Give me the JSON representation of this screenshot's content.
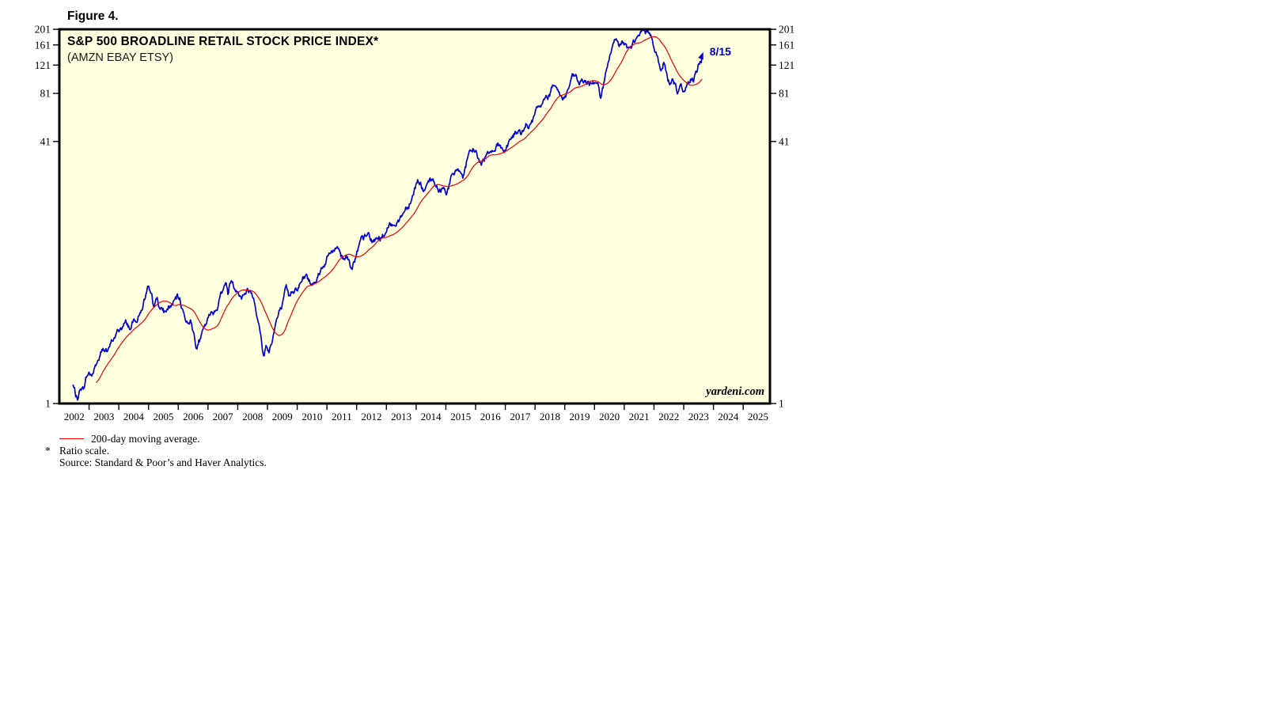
{
  "figure_label": "Figure 4.",
  "watermark": "yardeni.com",
  "footnotes": {
    "legend_ma": "200-day moving average.",
    "asterisk": "*",
    "ratio_scale": "Ratio scale.",
    "source": "Source: Standard & Poor’s and Haver Analytics."
  },
  "colors": {
    "price": "#0202ce",
    "ma": "#f00000",
    "plot_bg": "#ffffe0",
    "frame": "#000000",
    "annotation": "#0202ce"
  },
  "chart_data": {
    "type": "line",
    "title": "S&P 500 BROADLINE RETAIL STOCK PRICE INDEX*",
    "subtitle": "(AMZN EBAY ETSY)",
    "xlabel": "",
    "ylabel": "",
    "scale": "log (ratio scale)",
    "grid": false,
    "legend_position": "below-left",
    "ylim": [
      1,
      201
    ],
    "yticks": [
      1,
      41,
      81,
      121,
      161,
      201
    ],
    "xlim": [
      2002.0,
      2025.9
    ],
    "x_years": [
      2002,
      2003,
      2004,
      2005,
      2006,
      2007,
      2008,
      2009,
      2010,
      2011,
      2012,
      2013,
      2014,
      2015,
      2016,
      2017,
      2018,
      2019,
      2020,
      2021,
      2022,
      2023,
      2024,
      2025
    ],
    "last_point_label": "8/15",
    "last_value_approx": 138,
    "series": [
      {
        "name": "S&P 500 Broadline Retail stock price index (AMZN EBAY ETSY)",
        "color": "#0202ce",
        "points": [
          [
            2002.45,
            1.3
          ],
          [
            2002.55,
            1.12
          ],
          [
            2002.63,
            1.05
          ],
          [
            2002.72,
            1.28
          ],
          [
            2002.8,
            1.22
          ],
          [
            2002.9,
            1.45
          ],
          [
            2003.0,
            1.55
          ],
          [
            2003.1,
            1.5
          ],
          [
            2003.25,
            1.75
          ],
          [
            2003.4,
            2.0
          ],
          [
            2003.55,
            2.2
          ],
          [
            2003.65,
            2.1
          ],
          [
            2003.8,
            2.45
          ],
          [
            2003.95,
            2.7
          ],
          [
            2004.1,
            2.95
          ],
          [
            2004.25,
            3.1
          ],
          [
            2004.4,
            2.95
          ],
          [
            2004.55,
            3.3
          ],
          [
            2004.7,
            3.6
          ],
          [
            2004.85,
            4.3
          ],
          [
            2004.97,
            4.9
          ],
          [
            2005.08,
            4.3
          ],
          [
            2005.15,
            3.9
          ],
          [
            2005.3,
            4.3
          ],
          [
            2005.42,
            3.75
          ],
          [
            2005.55,
            3.55
          ],
          [
            2005.7,
            3.9
          ],
          [
            2005.85,
            4.15
          ],
          [
            2005.95,
            4.35
          ],
          [
            2006.05,
            4.2
          ],
          [
            2006.18,
            3.6
          ],
          [
            2006.3,
            3.2
          ],
          [
            2006.4,
            3.45
          ],
          [
            2006.5,
            2.8
          ],
          [
            2006.62,
            2.3
          ],
          [
            2006.75,
            2.55
          ],
          [
            2006.9,
            2.85
          ],
          [
            2007.05,
            3.3
          ],
          [
            2007.2,
            3.6
          ],
          [
            2007.35,
            4.2
          ],
          [
            2007.5,
            5.3
          ],
          [
            2007.6,
            5.6
          ],
          [
            2007.68,
            4.85
          ],
          [
            2007.78,
            5.85
          ],
          [
            2007.9,
            5.2
          ],
          [
            2008.0,
            5.35
          ],
          [
            2008.1,
            4.7
          ],
          [
            2008.25,
            4.95
          ],
          [
            2008.4,
            5.1
          ],
          [
            2008.55,
            4.6
          ],
          [
            2008.7,
            3.4
          ],
          [
            2008.8,
            2.4
          ],
          [
            2008.88,
            1.9
          ],
          [
            2008.95,
            2.35
          ],
          [
            2009.05,
            2.1
          ],
          [
            2009.15,
            2.5
          ],
          [
            2009.3,
            3.3
          ],
          [
            2009.45,
            3.7
          ],
          [
            2009.55,
            4.1
          ],
          [
            2009.63,
            4.75
          ],
          [
            2009.72,
            4.2
          ],
          [
            2009.85,
            5.0
          ],
          [
            2010.0,
            5.4
          ],
          [
            2010.15,
            5.8
          ],
          [
            2010.3,
            6.2
          ],
          [
            2010.45,
            5.4
          ],
          [
            2010.6,
            6.0
          ],
          [
            2010.8,
            7.0
          ],
          [
            2010.97,
            7.8
          ],
          [
            2011.1,
            8.3
          ],
          [
            2011.25,
            8.9
          ],
          [
            2011.4,
            9.3
          ],
          [
            2011.55,
            8.0
          ],
          [
            2011.65,
            8.6
          ],
          [
            2011.8,
            7.2
          ],
          [
            2011.95,
            8.0
          ],
          [
            2012.1,
            9.3
          ],
          [
            2012.25,
            10.2
          ],
          [
            2012.4,
            10.6
          ],
          [
            2012.55,
            9.6
          ],
          [
            2012.7,
            10.4
          ],
          [
            2012.85,
            10.8
          ],
          [
            2012.97,
            11.3
          ],
          [
            2013.15,
            12.2
          ],
          [
            2013.3,
            13.3
          ],
          [
            2013.45,
            13.9
          ],
          [
            2013.6,
            15.5
          ],
          [
            2013.75,
            17.5
          ],
          [
            2013.9,
            20.5
          ],
          [
            2014.05,
            24.5
          ],
          [
            2014.15,
            23.0
          ],
          [
            2014.3,
            20.5
          ],
          [
            2014.45,
            22.0
          ],
          [
            2014.6,
            22.5
          ],
          [
            2014.75,
            19.8
          ],
          [
            2014.9,
            21.0
          ],
          [
            2015.0,
            20.5
          ],
          [
            2015.15,
            23.5
          ],
          [
            2015.3,
            25.5
          ],
          [
            2015.45,
            27.5
          ],
          [
            2015.58,
            25.0
          ],
          [
            2015.7,
            30.0
          ],
          [
            2015.85,
            33.5
          ],
          [
            2016.0,
            36.5
          ],
          [
            2016.1,
            31.5
          ],
          [
            2016.2,
            29.5
          ],
          [
            2016.35,
            34.5
          ],
          [
            2016.5,
            37.5
          ],
          [
            2016.65,
            39.0
          ],
          [
            2016.8,
            40.0
          ],
          [
            2016.95,
            36.5
          ],
          [
            2017.1,
            41.0
          ],
          [
            2017.25,
            44.5
          ],
          [
            2017.4,
            47.5
          ],
          [
            2017.55,
            44.5
          ],
          [
            2017.7,
            49.0
          ],
          [
            2017.85,
            52.5
          ],
          [
            2018.0,
            58.0
          ],
          [
            2018.15,
            67.0
          ],
          [
            2018.3,
            70.0
          ],
          [
            2018.45,
            78.0
          ],
          [
            2018.6,
            88.0
          ],
          [
            2018.7,
            98.0
          ],
          [
            2018.8,
            85.0
          ],
          [
            2018.92,
            76.0
          ],
          [
            2019.05,
            80.0
          ],
          [
            2019.2,
            95.0
          ],
          [
            2019.35,
            98.0
          ],
          [
            2019.5,
            90.0
          ],
          [
            2019.6,
            96.0
          ],
          [
            2019.75,
            87.0
          ],
          [
            2019.9,
            92.0
          ],
          [
            2020.0,
            95.0
          ],
          [
            2020.1,
            98.0
          ],
          [
            2020.22,
            78.0
          ],
          [
            2020.35,
            100.0
          ],
          [
            2020.5,
            130.0
          ],
          [
            2020.62,
            150.0
          ],
          [
            2020.72,
            162.0
          ],
          [
            2020.82,
            150.0
          ],
          [
            2020.92,
            158.0
          ],
          [
            2021.02,
            163.0
          ],
          [
            2021.12,
            150.0
          ],
          [
            2021.22,
            148.0
          ],
          [
            2021.35,
            166.0
          ],
          [
            2021.5,
            178.0
          ],
          [
            2021.6,
            188.0
          ],
          [
            2021.7,
            180.0
          ],
          [
            2021.8,
            190.0
          ],
          [
            2021.9,
            175.0
          ],
          [
            2022.0,
            168.0
          ],
          [
            2022.12,
            142.0
          ],
          [
            2022.22,
            108.0
          ],
          [
            2022.32,
            125.0
          ],
          [
            2022.42,
            103.0
          ],
          [
            2022.52,
            93.0
          ],
          [
            2022.62,
            108.0
          ],
          [
            2022.72,
            95.0
          ],
          [
            2022.8,
            83.0
          ],
          [
            2022.88,
            90.0
          ],
          [
            2022.97,
            78.0
          ],
          [
            2023.05,
            86.0
          ],
          [
            2023.15,
            96.0
          ],
          [
            2023.25,
            100.0
          ],
          [
            2023.33,
            94.0
          ],
          [
            2023.42,
            103.0
          ],
          [
            2023.52,
            120.0
          ],
          [
            2023.62,
            138.0
          ]
        ]
      },
      {
        "name": "200-day moving average",
        "color": "#f00000",
        "derived_from": "series 0 trailing moving average",
        "window_days": 200
      }
    ]
  }
}
